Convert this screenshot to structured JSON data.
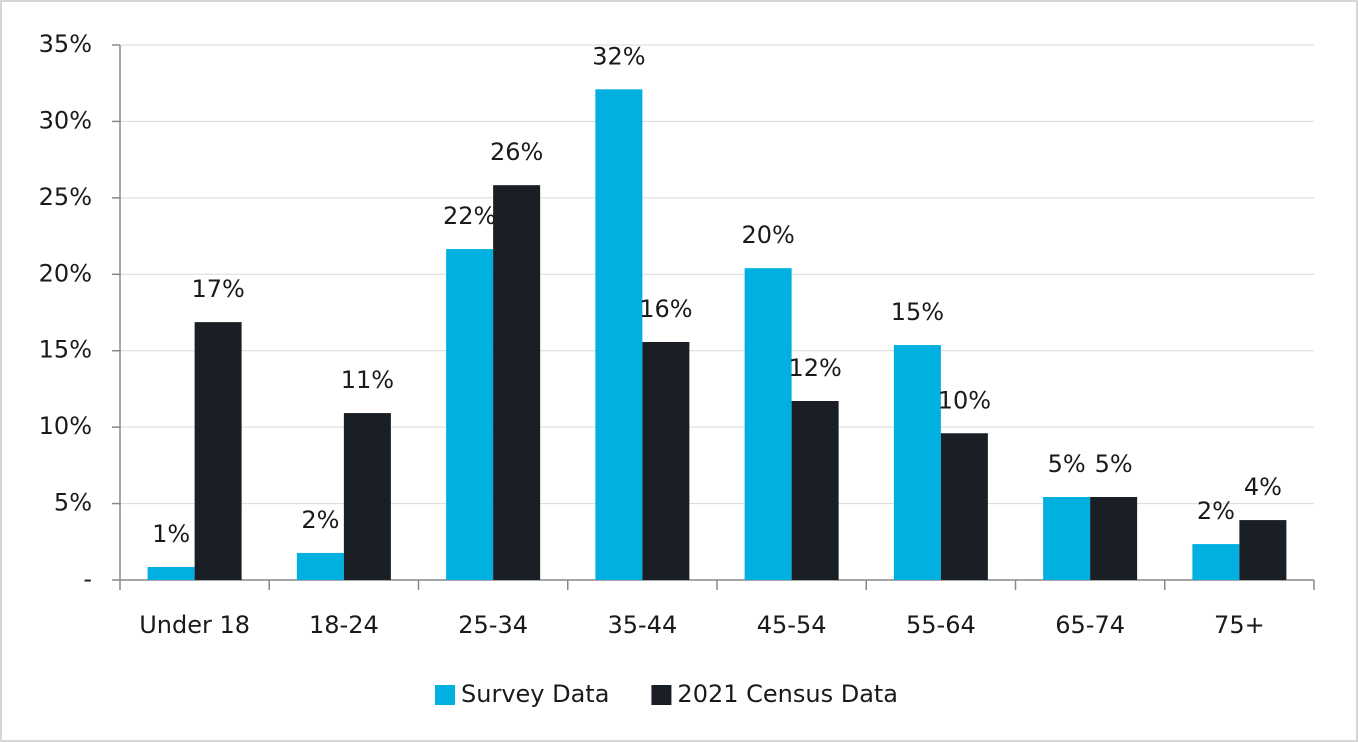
{
  "chart_data": {
    "type": "bar",
    "categories": [
      "Under 18",
      "18-24",
      "25-34",
      "35-44",
      "45-54",
      "55-64",
      "65-74",
      "75+"
    ],
    "series": [
      {
        "name": "Survey Data",
        "color": "#00b0e0",
        "values": [
          0.85,
          1.77,
          21.65,
          32.1,
          20.4,
          15.37,
          5.43,
          2.35
        ],
        "value_labels": [
          "1%",
          "2%",
          "22%",
          "32%",
          "20%",
          "15%",
          "5%",
          "2%"
        ]
      },
      {
        "name": "2021 Census Data",
        "color": "#1a1e25",
        "values": [
          16.87,
          10.92,
          25.83,
          15.57,
          11.71,
          9.6,
          5.43,
          3.92
        ],
        "value_labels": [
          "17%",
          "11%",
          "26%",
          "16%",
          "12%",
          "10%",
          "5%",
          "4%"
        ]
      }
    ],
    "ylim": [
      0,
      35
    ],
    "yticks": [
      {
        "value": 0,
        "label": "-"
      },
      {
        "value": 5,
        "label": "5%"
      },
      {
        "value": 10,
        "label": "10%"
      },
      {
        "value": 15,
        "label": "15%"
      },
      {
        "value": 20,
        "label": "20%"
      },
      {
        "value": 25,
        "label": "25%"
      },
      {
        "value": 30,
        "label": "30%"
      },
      {
        "value": 35,
        "label": "35%"
      }
    ],
    "grid": true,
    "legend": "bottom"
  }
}
